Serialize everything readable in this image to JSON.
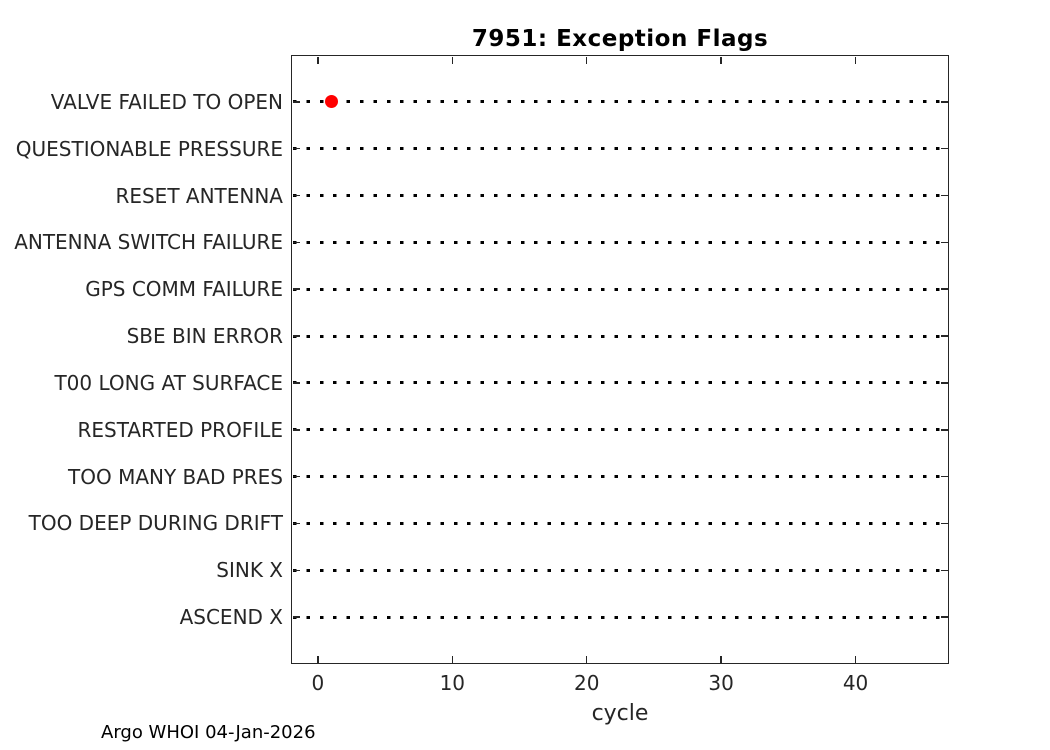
{
  "title": "7951: Exception Flags",
  "xlabel": "cycle",
  "credit": "Argo WHOI 04-Jan-2026",
  "colors": {
    "marker": "#ff0000",
    "axis": "#262626",
    "dots": "#000000"
  },
  "chart_data": {
    "type": "scatter",
    "title": "7951: Exception Flags",
    "xlabel": "cycle",
    "ylabel": "",
    "xlim": [
      -2,
      46.95
    ],
    "x_ticks": [
      0,
      10,
      20,
      30,
      40
    ],
    "grid": "dotted horizontal line per category row, one dot per cycle",
    "legend_position": "none",
    "categories": [
      "VALVE FAILED TO OPEN",
      "QUESTIONABLE PRESSURE",
      "RESET ANTENNA",
      "ANTENNA SWITCH FAILURE",
      "GPS COMM FAILURE",
      "SBE BIN ERROR",
      "T00 LONG AT SURFACE",
      "RESTARTED PROFILE",
      "TOO MANY BAD PRES",
      "TOO DEEP DURING DRIFT",
      "SINK X",
      "ASCEND X"
    ],
    "points": [
      {
        "category": "VALVE FAILED TO OPEN",
        "cycle": 1,
        "color": "#ff0000",
        "marker": "filled-circle"
      }
    ]
  }
}
